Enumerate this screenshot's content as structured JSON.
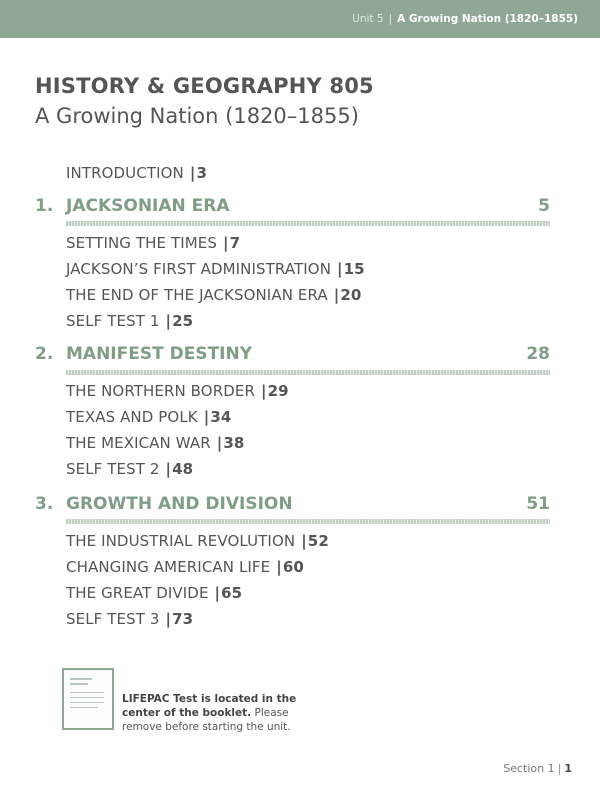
{
  "header": {
    "unit": "Unit 5",
    "unit_title": "A Growing Nation (1820–1855)"
  },
  "title": "HISTORY & GEOGRAPHY 805",
  "subtitle": "A Growing Nation (1820–1855)",
  "introduction": {
    "label": "INTRODUCTION",
    "page": "3"
  },
  "sections": [
    {
      "number": "1.",
      "title": "JACKSONIAN ERA",
      "page": "5",
      "items": [
        {
          "label": "SETTING THE TIMES",
          "page": "7"
        },
        {
          "label": "JACKSON’S FIRST ADMINISTRATION",
          "page": "15"
        },
        {
          "label": "THE END OF THE JACKSONIAN ERA",
          "page": "20"
        },
        {
          "label": "SELF TEST 1",
          "page": "25"
        }
      ]
    },
    {
      "number": "2.",
      "title": "MANIFEST DESTINY",
      "page": "28",
      "items": [
        {
          "label": "THE NORTHERN BORDER",
          "page": "29"
        },
        {
          "label": "TEXAS AND POLK",
          "page": "34"
        },
        {
          "label": "THE MEXICAN WAR",
          "page": "38"
        },
        {
          "label": "SELF TEST 2",
          "page": "48"
        }
      ]
    },
    {
      "number": "3.",
      "title": "GROWTH AND DIVISION",
      "page": "51",
      "items": [
        {
          "label": "THE INDUSTRIAL REVOLUTION",
          "page": "52"
        },
        {
          "label": "CHANGING AMERICAN LIFE",
          "page": "60"
        },
        {
          "label": "THE GREAT DIVIDE",
          "page": "65"
        },
        {
          "label": "SELF TEST 3",
          "page": "73"
        }
      ]
    }
  ],
  "note": {
    "bold_text": "LIFEPAC Test is located in the center of the booklet.",
    "rest_text": "Please remove before starting the unit."
  },
  "footer": {
    "section_label": "Section 1",
    "page": "1"
  },
  "colors": {
    "accent": "#7f9e85",
    "header_bar": "#8fa794",
    "text": "#555555"
  }
}
